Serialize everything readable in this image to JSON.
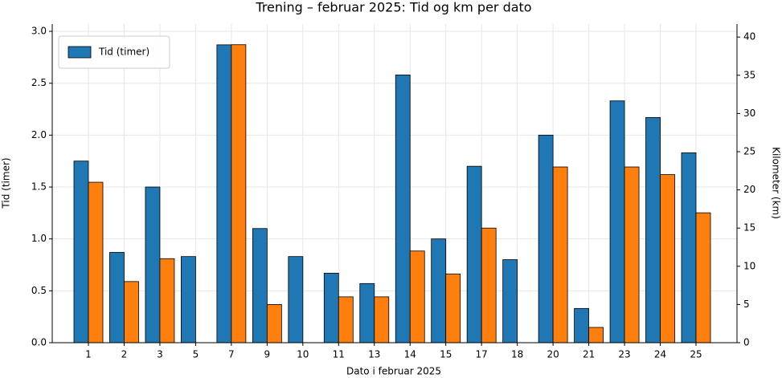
{
  "chart_data": {
    "type": "bar",
    "title": "Trening – februar 2025: Tid og km per dato",
    "x_label": "Dato i februar 2025",
    "y_label": "Tid (timer)",
    "y2_label": "Kilometer (km)",
    "categories": [
      "1",
      "2",
      "3",
      "5",
      "7",
      "9",
      "10",
      "11",
      "13",
      "14",
      "15",
      "17",
      "18",
      "20",
      "21",
      "23",
      "24",
      "25"
    ],
    "series": [
      {
        "name": "Tid (timer)",
        "color": "#1f77b4",
        "values": [
          1.75,
          0.87,
          1.5,
          0.83,
          2.87,
          1.1,
          0.83,
          0.67,
          0.57,
          2.58,
          1.0,
          1.7,
          0.8,
          2.0,
          0.33,
          2.33,
          2.17,
          1.83
        ]
      },
      {
        "color": "#ff7f0e",
        "axis": "y2",
        "values": [
          21,
          8,
          11,
          null,
          39,
          5,
          null,
          6,
          6,
          12,
          9,
          15,
          null,
          23,
          2,
          23,
          22,
          17
        ]
      }
    ],
    "ylim": [
      0,
      3.07
    ],
    "yticks": [
      {
        "value": 0,
        "label": "0.0"
      },
      0.5,
      {
        "value": 1,
        "label": "1.0"
      },
      1.5,
      {
        "value": 2,
        "label": "2.0"
      },
      2.5,
      {
        "value": 3,
        "label": "3.0"
      }
    ],
    "y2lim": [
      0,
      41.7
    ],
    "y2ticks": [
      0,
      5,
      10,
      15,
      20,
      25,
      30,
      35,
      40
    ],
    "grid": true,
    "legend": "upper-left"
  }
}
